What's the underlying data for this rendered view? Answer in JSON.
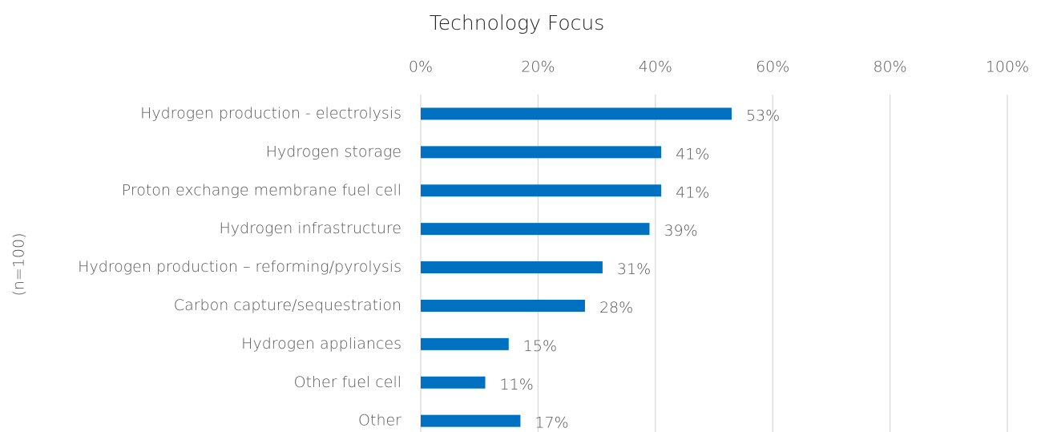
{
  "chart_data": {
    "type": "bar",
    "orientation": "horizontal",
    "title": "Technology Focus",
    "ylabel": "(n=100)",
    "categories": [
      "Hydrogen production - electrolysis",
      "Hydrogen storage",
      "Proton exchange membrane fuel cell",
      "Hydrogen infrastructure",
      "Hydrogen production – reforming/pyrolysis",
      "Carbon capture/sequestration",
      "Hydrogen appliances",
      "Other fuel cell",
      "Other"
    ],
    "values": [
      53,
      41,
      41,
      39,
      31,
      28,
      15,
      11,
      17
    ],
    "value_labels": [
      "53%",
      "41%",
      "41%",
      "39%",
      "31%",
      "28%",
      "15%",
      "11%",
      "17%"
    ],
    "color": "#0070c0",
    "xlim": [
      0,
      100
    ],
    "xticks": [
      {
        "value": 0,
        "label": "0%"
      },
      {
        "value": 20,
        "label": "20%"
      },
      {
        "value": 40,
        "label": "40%"
      },
      {
        "value": 60,
        "label": "60%"
      },
      {
        "value": 80,
        "label": "80%"
      },
      {
        "value": 100,
        "label": "100%"
      }
    ],
    "grid": true
  }
}
